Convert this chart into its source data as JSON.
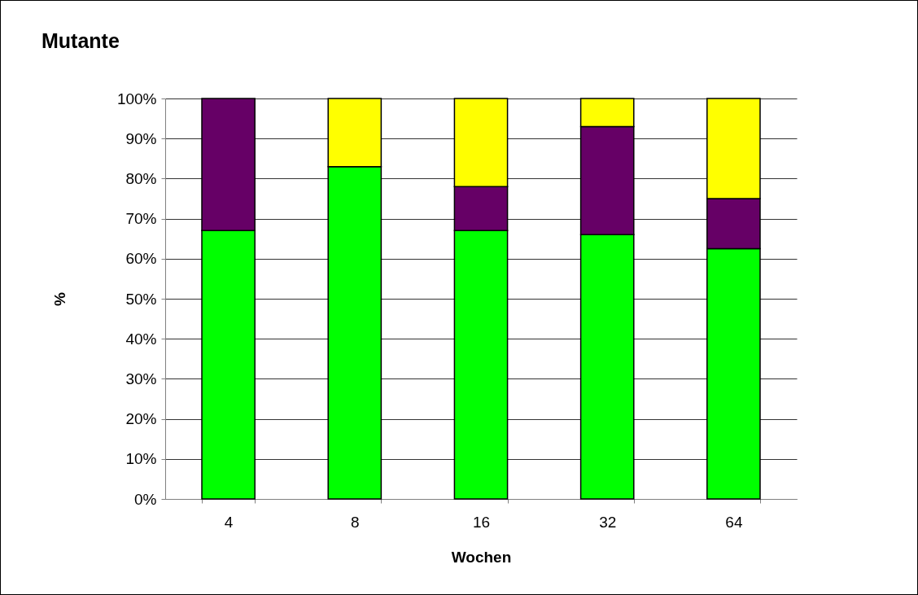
{
  "chart_data": {
    "type": "bar",
    "title": "Mutante",
    "xlabel": "Wochen",
    "ylabel": "%",
    "categories": [
      "4",
      "8",
      "16",
      "32",
      "64"
    ],
    "stacked": true,
    "series": [
      {
        "color": "#00ff00",
        "values": [
          67,
          83,
          67,
          66,
          62.5
        ]
      },
      {
        "color": "#660066",
        "values": [
          33,
          null,
          11,
          27,
          12.5
        ]
      },
      {
        "color": "#ffff00",
        "values": [
          null,
          17,
          22,
          7,
          25
        ]
      }
    ],
    "ylim": [
      0,
      100
    ],
    "yticks": [
      {
        "value": 0,
        "label": "0%"
      },
      {
        "value": 10,
        "label": "10%"
      },
      {
        "value": 20,
        "label": "20%"
      },
      {
        "value": 30,
        "label": "30%"
      },
      {
        "value": 40,
        "label": "40%"
      },
      {
        "value": 50,
        "label": "50%"
      },
      {
        "value": 60,
        "label": "60%"
      },
      {
        "value": 70,
        "label": "70%"
      },
      {
        "value": 80,
        "label": "80%"
      },
      {
        "value": 90,
        "label": "90%"
      },
      {
        "value": 100,
        "label": "100%"
      }
    ],
    "grid": "y",
    "legend": false
  }
}
